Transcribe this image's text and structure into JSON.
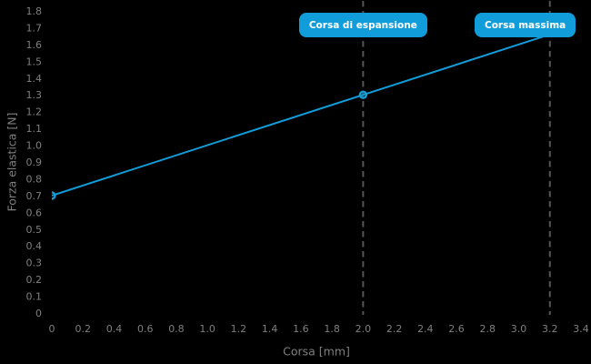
{
  "figure": {
    "background": "#000000",
    "accent_color": "#119dda",
    "label_color": "#7f7f7f",
    "guide_color": "#555555",
    "annotation_text_color": "#ffffff"
  },
  "chart_data": {
    "type": "line",
    "title": "",
    "xlabel": "Corsa [mm]",
    "ylabel": "Forza elastica [N]",
    "xlim": [
      0,
      3.4
    ],
    "ylim": [
      0,
      1.8
    ],
    "grid": false,
    "legend": false,
    "x_ticks": [
      {
        "value": 0,
        "label": "0"
      },
      {
        "value": 0.2,
        "label": "0.2"
      },
      {
        "value": 0.4,
        "label": "0.4"
      },
      {
        "value": 0.6,
        "label": "0.6"
      },
      {
        "value": 0.8,
        "label": "0.8"
      },
      {
        "value": 1.0,
        "label": "1.0"
      },
      {
        "value": 1.2,
        "label": "1.2"
      },
      {
        "value": 1.4,
        "label": "1.4"
      },
      {
        "value": 1.6,
        "label": "1.6"
      },
      {
        "value": 1.8,
        "label": "1.8"
      },
      {
        "value": 2.0,
        "label": "2.0"
      },
      {
        "value": 2.2,
        "label": "2.2"
      },
      {
        "value": 2.4,
        "label": "2.4"
      },
      {
        "value": 2.6,
        "label": "2.6"
      },
      {
        "value": 2.8,
        "label": "2.8"
      },
      {
        "value": 3.0,
        "label": "3.0"
      },
      {
        "value": 3.2,
        "label": "3.2"
      },
      {
        "value": 3.4,
        "label": "3.4"
      }
    ],
    "y_ticks": [
      {
        "value": 0,
        "label": "0"
      },
      {
        "value": 0.1,
        "label": "0.1"
      },
      {
        "value": 0.2,
        "label": "0.2"
      },
      {
        "value": 0.3,
        "label": "0.3"
      },
      {
        "value": 0.4,
        "label": "0.4"
      },
      {
        "value": 0.5,
        "label": "0.5"
      },
      {
        "value": 0.6,
        "label": "0.6"
      },
      {
        "value": 0.7,
        "label": "0.7"
      },
      {
        "value": 0.8,
        "label": "0.8"
      },
      {
        "value": 0.9,
        "label": "0.9"
      },
      {
        "value": 1.0,
        "label": "1.0"
      },
      {
        "value": 1.1,
        "label": "1.1"
      },
      {
        "value": 1.2,
        "label": "1.2"
      },
      {
        "value": 1.3,
        "label": "1.3"
      },
      {
        "value": 1.4,
        "label": "1.4"
      },
      {
        "value": 1.5,
        "label": "1.5"
      },
      {
        "value": 1.6,
        "label": "1.6"
      },
      {
        "value": 1.7,
        "label": "1.7"
      },
      {
        "value": 1.8,
        "label": "1.8"
      }
    ],
    "series": [
      {
        "name": "forza-elastica",
        "color": "#119dda",
        "points": [
          [
            0,
            0.7
          ],
          [
            2.0,
            1.3
          ],
          [
            3.2,
            1.66
          ]
        ],
        "markers": [
          [
            0,
            0.7
          ],
          [
            2.0,
            1.3
          ]
        ],
        "marker_style": "open-circle"
      }
    ],
    "annotations": [
      {
        "label": "Corsa di espansione",
        "x": 2.0,
        "guide": "dashed-vertical"
      },
      {
        "label": "Corsa massima",
        "x": 3.2,
        "guide": "dashed-vertical"
      }
    ]
  }
}
